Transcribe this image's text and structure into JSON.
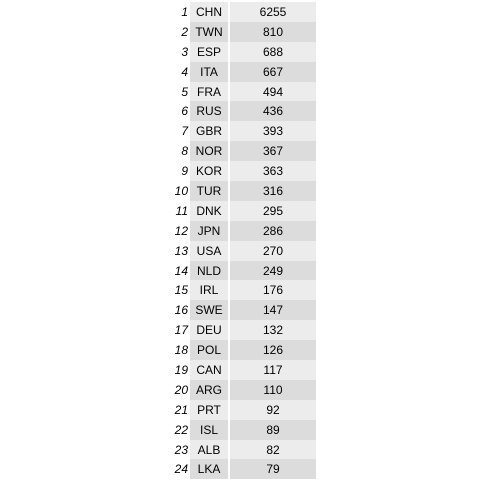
{
  "chart_data": {
    "type": "table",
    "columns": [
      "rank",
      "country",
      "value"
    ],
    "rows": [
      {
        "rank": "1",
        "country": "CHN",
        "value": "6255"
      },
      {
        "rank": "2",
        "country": "TWN",
        "value": "810"
      },
      {
        "rank": "3",
        "country": "ESP",
        "value": "688"
      },
      {
        "rank": "4",
        "country": "ITA",
        "value": "667"
      },
      {
        "rank": "5",
        "country": "FRA",
        "value": "494"
      },
      {
        "rank": "6",
        "country": "RUS",
        "value": "436"
      },
      {
        "rank": "7",
        "country": "GBR",
        "value": "393"
      },
      {
        "rank": "8",
        "country": "NOR",
        "value": "367"
      },
      {
        "rank": "9",
        "country": "KOR",
        "value": "363"
      },
      {
        "rank": "10",
        "country": "TUR",
        "value": "316"
      },
      {
        "rank": "11",
        "country": "DNK",
        "value": "295"
      },
      {
        "rank": "12",
        "country": "JPN",
        "value": "286"
      },
      {
        "rank": "13",
        "country": "USA",
        "value": "270"
      },
      {
        "rank": "14",
        "country": "NLD",
        "value": "249"
      },
      {
        "rank": "15",
        "country": "IRL",
        "value": "176"
      },
      {
        "rank": "16",
        "country": "SWE",
        "value": "147"
      },
      {
        "rank": "17",
        "country": "DEU",
        "value": "132"
      },
      {
        "rank": "18",
        "country": "POL",
        "value": "126"
      },
      {
        "rank": "19",
        "country": "CAN",
        "value": "117"
      },
      {
        "rank": "20",
        "country": "ARG",
        "value": "110"
      },
      {
        "rank": "21",
        "country": "PRT",
        "value": "92"
      },
      {
        "rank": "22",
        "country": "ISL",
        "value": "89"
      },
      {
        "rank": "23",
        "country": "ALB",
        "value": "82"
      },
      {
        "rank": "24",
        "country": "LKA",
        "value": "79"
      }
    ]
  }
}
